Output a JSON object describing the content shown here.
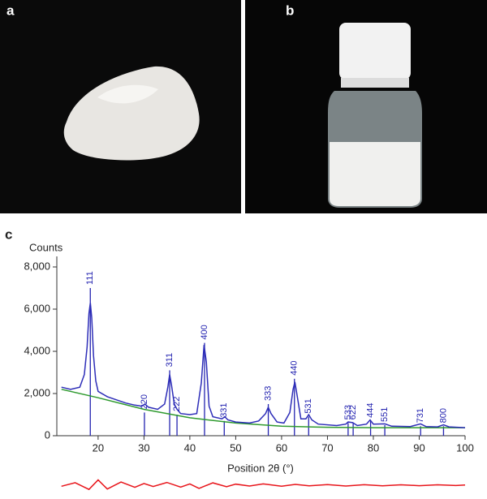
{
  "panels": [
    "a",
    "b",
    "c"
  ],
  "chart_data": {
    "type": "line",
    "ylabel": "Counts",
    "xlabel": "Position 2θ (°)",
    "xlim": [
      11,
      100
    ],
    "ylim": [
      0,
      8500
    ],
    "xticks": [
      20,
      30,
      40,
      50,
      60,
      70,
      80,
      90,
      100
    ],
    "yticks": [
      0,
      {
        "value": 2000,
        "label": "2,000"
      },
      {
        "value": 4000,
        "label": "4,000"
      },
      {
        "value": 6000,
        "label": "6,000"
      },
      {
        "value": 8000,
        "label": "8,000"
      }
    ],
    "series": [
      {
        "color": "#2d2db8",
        "x": [
          12,
          14,
          16,
          17,
          17.6,
          18.0,
          18.3,
          18.6,
          19,
          19.5,
          20,
          22,
          24,
          26,
          28,
          29.5,
          30.2,
          31,
          33,
          34.5,
          35.2,
          35.6,
          36,
          36.6,
          37.2,
          38,
          40,
          41.5,
          42.5,
          43.1,
          43.6,
          44.2,
          45,
          47,
          47.6,
          48.3,
          50,
          53,
          55,
          56.5,
          57.1,
          57.7,
          59,
          60.5,
          61.8,
          62.5,
          62.9,
          63.4,
          64.2,
          65.3,
          65.9,
          66.6,
          68,
          72,
          74,
          74.5,
          75.5,
          76.5,
          78.5,
          79.3,
          80,
          82.5,
          84,
          88,
          90.3,
          91.5,
          94,
          95.3,
          96.5,
          100
        ],
        "values": [
          2300,
          2200,
          2300,
          2900,
          4200,
          5800,
          6300,
          5600,
          3800,
          2600,
          2100,
          1850,
          1700,
          1550,
          1450,
          1400,
          1500,
          1350,
          1250,
          1500,
          2300,
          2900,
          2400,
          1500,
          1250,
          1050,
          1000,
          1050,
          2500,
          4300,
          3500,
          1400,
          900,
          800,
          900,
          750,
          650,
          600,
          700,
          1050,
          1350,
          1050,
          650,
          600,
          1100,
          2200,
          2550,
          1900,
          800,
          800,
          1000,
          750,
          550,
          480,
          550,
          650,
          620,
          480,
          550,
          750,
          550,
          560,
          450,
          430,
          560,
          430,
          420,
          520,
          420,
          380
        ]
      },
      {
        "color": "#2e9a2e",
        "x": [
          12,
          20,
          30,
          40,
          50,
          60,
          70,
          80,
          90,
          100
        ],
        "values": [
          2200,
          1800,
          1250,
          850,
          600,
          450,
          400,
          380,
          380,
          380
        ]
      }
    ],
    "residual": {
      "color": "#e8141a",
      "x": [
        12,
        15,
        18,
        20,
        22,
        25,
        28,
        30,
        32,
        35,
        38,
        40,
        42,
        45,
        48,
        50,
        53,
        56,
        60,
        63,
        66,
        70,
        74,
        78,
        82,
        86,
        90,
        94,
        98,
        100
      ],
      "values": [
        -50,
        120,
        -200,
        250,
        -180,
        150,
        -100,
        80,
        -60,
        130,
        -90,
        60,
        -150,
        110,
        -70,
        50,
        -40,
        60,
        -50,
        40,
        -30,
        30,
        -40,
        25,
        -30,
        20,
        -25,
        20,
        -15,
        10
      ]
    },
    "reflections": {
      "color": "#2323b0",
      "labels": [
        "111",
        "220",
        "311",
        "222",
        "400",
        "331",
        "333",
        "440",
        "531",
        "533",
        "622",
        "444",
        "551",
        "731",
        "800"
      ],
      "positions": [
        18.3,
        30.1,
        35.6,
        37.2,
        43.2,
        47.5,
        57.1,
        62.8,
        65.9,
        74.5,
        75.6,
        79.4,
        82.5,
        90.3,
        95.3
      ],
      "heights": [
        7000,
        1100,
        3100,
        1000,
        4400,
        700,
        1500,
        2700,
        900,
        600,
        600,
        700,
        500,
        450,
        450
      ]
    }
  }
}
